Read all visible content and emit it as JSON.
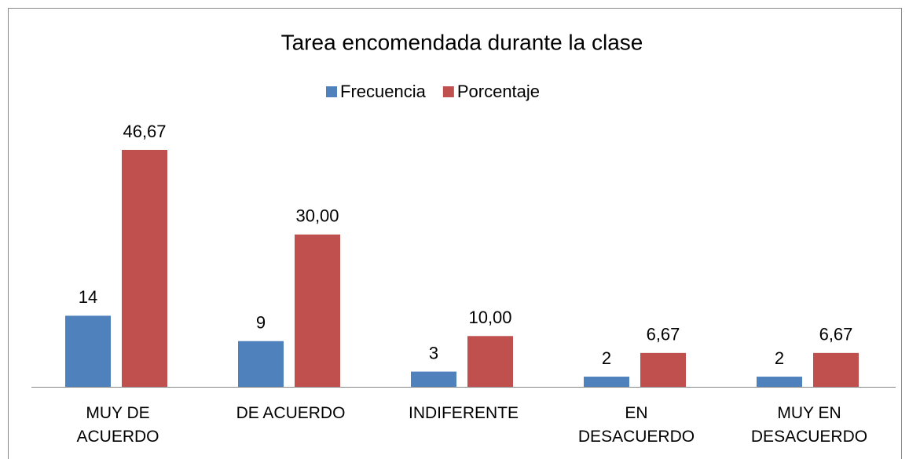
{
  "chart_data": {
    "type": "bar",
    "title": "Tarea encomendada durante la clase",
    "categories": [
      "MUY DE\nACUERDO",
      "DE ACUERDO",
      "INDIFERENTE",
      "EN\nDESACUERDO",
      "MUY EN\nDESACUERDO"
    ],
    "series": [
      {
        "name": "Frecuencia",
        "color": "#4f81bd",
        "values": [
          14,
          9,
          3,
          2,
          2
        ]
      },
      {
        "name": "Porcentaje",
        "color": "#c0504d",
        "values": [
          46.67,
          30,
          10,
          6.67,
          6.67
        ],
        "value_labels": [
          "46,67",
          "30,00",
          "10,00",
          "6,67",
          "6,67"
        ]
      }
    ],
    "legend": "top"
  }
}
